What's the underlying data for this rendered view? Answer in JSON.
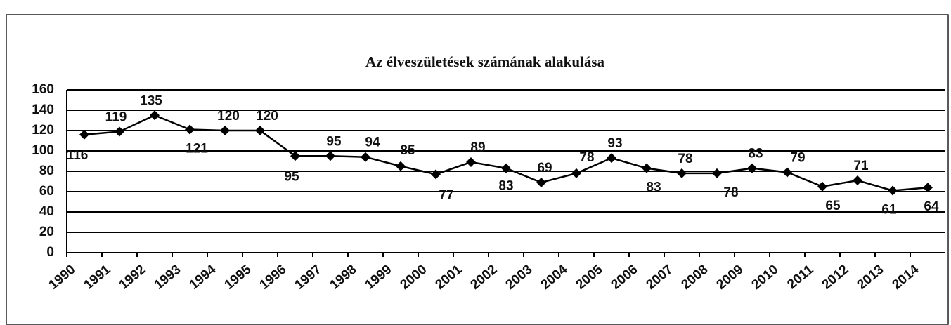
{
  "chart_data": {
    "type": "line",
    "title": "Az élveszületések számának alakulása",
    "categories": [
      "1990",
      "1991",
      "1992",
      "1993",
      "1994",
      "1995",
      "1996",
      "1997",
      "1998",
      "1999",
      "2000",
      "2001",
      "2002",
      "2003",
      "2004",
      "2005",
      "2006",
      "2007",
      "2008",
      "2009",
      "2010",
      "2011",
      "2012",
      "2013",
      "2014"
    ],
    "values": [
      116,
      119,
      135,
      121,
      120,
      120,
      95,
      95,
      94,
      85,
      77,
      89,
      83,
      69,
      78,
      93,
      83,
      78,
      78,
      83,
      79,
      65,
      71,
      61,
      64
    ],
    "color": "#000000",
    "ylim": [
      0,
      160
    ],
    "yticks": [
      0,
      20,
      40,
      60,
      80,
      100,
      120,
      140,
      160
    ],
    "grid": true
  }
}
